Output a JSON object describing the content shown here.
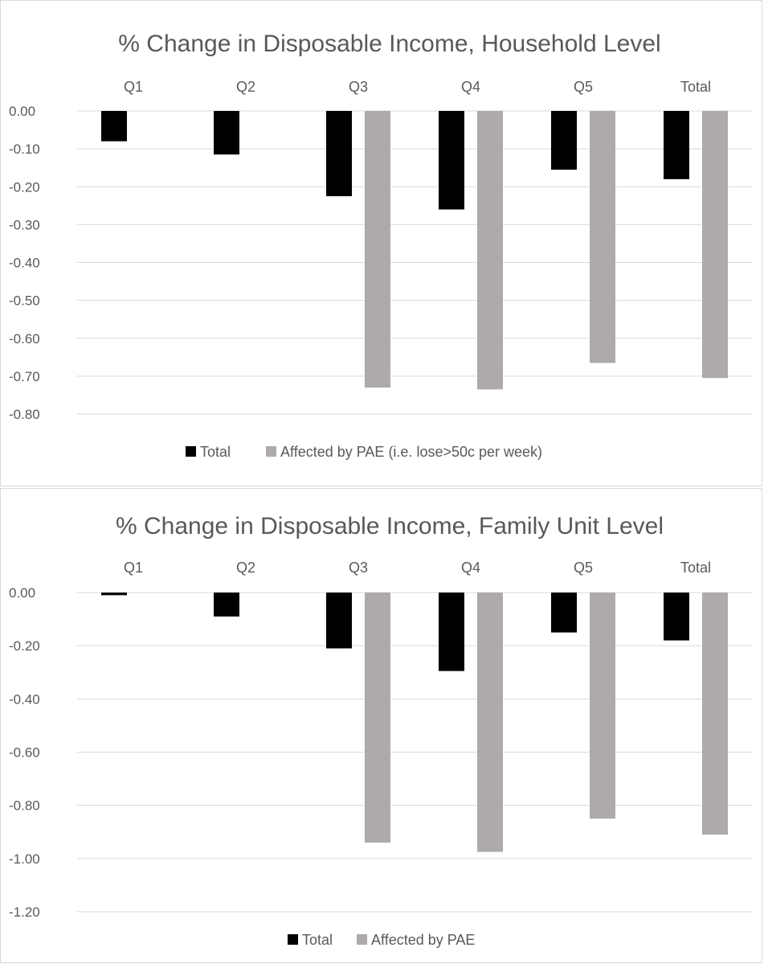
{
  "colors": {
    "total": "#000000",
    "affected": "#aeaaaa",
    "grid": "#d9d9d9",
    "text": "#595959"
  },
  "chart_data": [
    {
      "type": "bar",
      "title": "% Change in Disposable Income, Household Level",
      "categories": [
        "Q1",
        "Q2",
        "Q3",
        "Q4",
        "Q5",
        "Total"
      ],
      "y_ticks": [
        "0.00",
        "-0.10",
        "-0.20",
        "-0.30",
        "-0.40",
        "-0.50",
        "-0.60",
        "-0.70",
        "-0.80"
      ],
      "ylim": [
        -0.8,
        0
      ],
      "series": [
        {
          "name": "Total",
          "values": [
            -0.08,
            -0.115,
            -0.225,
            -0.26,
            -0.155,
            -0.18
          ]
        },
        {
          "name": "Affected by PAE (i.e. lose>50c per week)",
          "values": [
            null,
            null,
            -0.73,
            -0.735,
            -0.665,
            -0.705
          ]
        }
      ],
      "legend_position": "bottom",
      "category_axis_position": "top",
      "grid": true
    },
    {
      "type": "bar",
      "title": "% Change in Disposable Income, Family Unit Level",
      "categories": [
        "Q1",
        "Q2",
        "Q3",
        "Q4",
        "Q5",
        "Total"
      ],
      "y_ticks": [
        "0.00",
        "-0.20",
        "-0.40",
        "-0.60",
        "-0.80",
        "-1.00",
        "-1.20"
      ],
      "ylim": [
        -1.2,
        0
      ],
      "series": [
        {
          "name": "Total",
          "values": [
            -0.01,
            -0.09,
            -0.21,
            -0.295,
            -0.15,
            -0.18
          ]
        },
        {
          "name": "Affected by PAE",
          "values": [
            null,
            null,
            -0.94,
            -0.975,
            -0.85,
            -0.91
          ]
        }
      ],
      "legend_position": "bottom",
      "category_axis_position": "top",
      "grid": true
    }
  ]
}
